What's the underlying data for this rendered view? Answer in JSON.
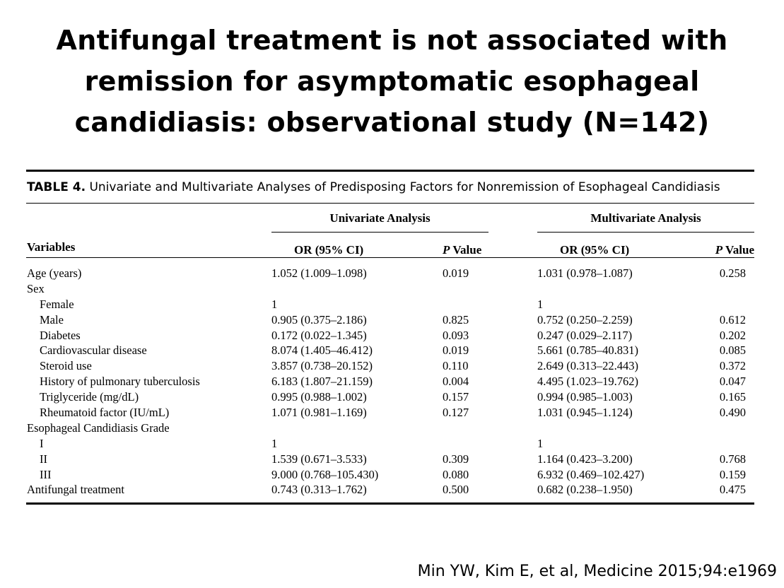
{
  "slide": {
    "title_lines": [
      "Antifungal treatment is not associated with",
      "remission for asymptomatic esophageal",
      "candidiasis: observational study (N=142)"
    ],
    "citation": "Min YW, Kim E, et al, Medicine 2015;94:e1969"
  },
  "table": {
    "caption_label": "TABLE 4.",
    "caption_text": " Univariate and Multivariate Analyses of Predisposing Factors for Nonremission of Esophageal Candidiasis",
    "group_univariate": "Univariate Analysis",
    "group_multivariate": "Multivariate Analysis",
    "col_variables": "Variables",
    "col_or": "OR (95% CI)",
    "col_p_italic": "P",
    "col_p_rest": " Value",
    "rows": [
      {
        "label": "Age (years)",
        "u_or": "1.052 (1.009–1.098)",
        "u_p": "0.019",
        "m_or": "1.031 (0.978–1.087)",
        "m_p": "0.258"
      },
      {
        "label": "Sex",
        "u_or": "",
        "u_p": "",
        "m_or": "",
        "m_p": ""
      },
      {
        "label": "Female",
        "u_or": "1",
        "u_p": "",
        "m_or": "1",
        "m_p": ""
      },
      {
        "label": "Male",
        "u_or": "0.905 (0.375–2.186)",
        "u_p": "0.825",
        "m_or": "0.752 (0.250–2.259)",
        "m_p": "0.612"
      },
      {
        "label": "Diabetes",
        "u_or": "0.172 (0.022–1.345)",
        "u_p": "0.093",
        "m_or": "0.247 (0.029–2.117)",
        "m_p": "0.202"
      },
      {
        "label": "Cardiovascular disease",
        "u_or": "8.074 (1.405–46.412)",
        "u_p": "0.019",
        "m_or": "5.661 (0.785–40.831)",
        "m_p": "0.085"
      },
      {
        "label": "Steroid use",
        "u_or": "3.857 (0.738–20.152)",
        "u_p": "0.110",
        "m_or": "2.649 (0.313–22.443)",
        "m_p": "0.372"
      },
      {
        "label": "History of pulmonary tuberculosis",
        "u_or": "6.183 (1.807–21.159)",
        "u_p": "0.004",
        "m_or": "4.495 (1.023–19.762)",
        "m_p": "0.047"
      },
      {
        "label": "Triglyceride (mg/dL)",
        "u_or": "0.995 (0.988–1.002)",
        "u_p": "0.157",
        "m_or": "0.994 (0.985–1.003)",
        "m_p": "0.165"
      },
      {
        "label": "Rheumatoid factor (IU/mL)",
        "u_or": "1.071 (0.981–1.169)",
        "u_p": "0.127",
        "m_or": "1.031 (0.945–1.124)",
        "m_p": "0.490"
      },
      {
        "label": "Esophageal Candidiasis Grade",
        "u_or": "",
        "u_p": "",
        "m_or": "",
        "m_p": ""
      },
      {
        "label": "I",
        "u_or": "1",
        "u_p": "",
        "m_or": "1",
        "m_p": ""
      },
      {
        "label": "II",
        "u_or": "1.539 (0.671–3.533)",
        "u_p": "0.309",
        "m_or": "1.164 (0.423–3.200)",
        "m_p": "0.768"
      },
      {
        "label": "III",
        "u_or": "9.000 (0.768–105.430)",
        "u_p": "0.080",
        "m_or": "6.932 (0.469–102.427)",
        "m_p": "0.159"
      },
      {
        "label": "Antifungal treatment",
        "u_or": "0.743 (0.313–1.762)",
        "u_p": "0.500",
        "m_or": "0.682 (0.238–1.950)",
        "m_p": "0.475"
      }
    ]
  }
}
